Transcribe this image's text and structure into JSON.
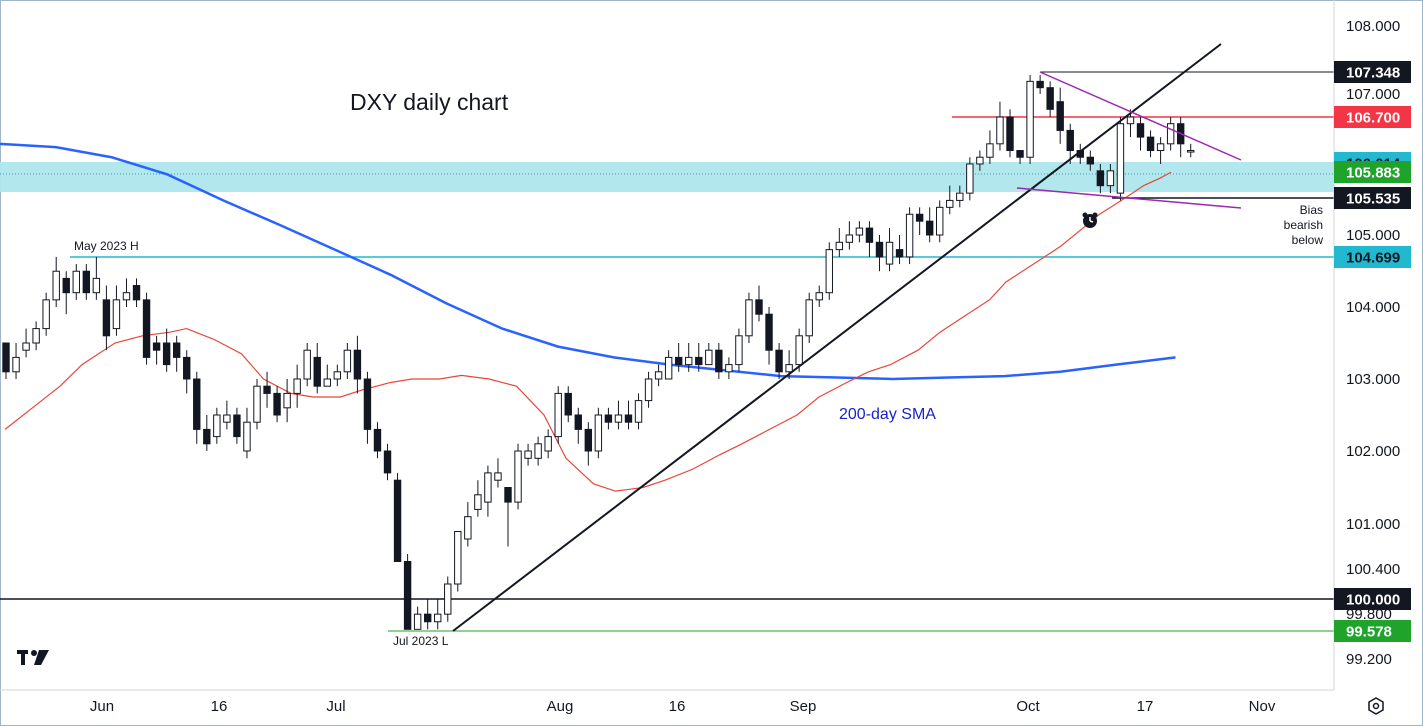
{
  "chart_data": {
    "type": "candlestick",
    "title": "DXY daily chart",
    "y_ticks": [
      "108.000",
      "107.000",
      "105.000",
      "104.000",
      "103.000",
      "102.000",
      "101.000",
      "100.400",
      "99.800",
      "99.200"
    ],
    "x_ticks": [
      "Jun",
      "16",
      "Jul",
      "Aug",
      "16",
      "Sep",
      "Oct",
      "17",
      "Nov"
    ],
    "price_tags": [
      {
        "value": "107.348",
        "bg": "#131722",
        "fg": "#ffffff"
      },
      {
        "value": "106.700",
        "bg": "#f23645",
        "fg": "#ffffff"
      },
      {
        "value": "106.014",
        "bg": "#22b8cf",
        "fg": "#131722"
      },
      {
        "value": "105.883",
        "bg": "#1fa32b",
        "fg": "#ffffff"
      },
      {
        "value": "105.535",
        "bg": "#131722",
        "fg": "#ffffff"
      },
      {
        "value": "104.699",
        "bg": "#22b8cf",
        "fg": "#131722"
      },
      {
        "value": "100.000",
        "bg": "#131722",
        "fg": "#ffffff"
      },
      {
        "value": "99.578",
        "bg": "#1fa32b",
        "fg": "#ffffff"
      }
    ],
    "levels": {
      "high_oct": 107.348,
      "resistance": 106.7,
      "zone_top": 106.014,
      "zone_bottom": 105.535,
      "ma_now": 105.883,
      "may_high": 104.699,
      "round": 100.0,
      "jul_low": 99.578
    },
    "annotations": {
      "may_high": "May 2023 H",
      "jul_low": "Jul 2023 L",
      "bias_line1": "Bias",
      "bias_line2": "bearish",
      "bias_line3": "below",
      "sma_label": "200-day SMA"
    },
    "candles": [
      [
        103.5,
        103.1,
        103.5,
        103.0
      ],
      [
        103.1,
        103.3,
        103.5,
        103.0
      ],
      [
        103.4,
        103.5,
        103.7,
        103.3
      ],
      [
        103.5,
        103.7,
        103.8,
        103.4
      ],
      [
        103.7,
        104.1,
        104.2,
        103.6
      ],
      [
        104.1,
        104.5,
        104.7,
        104.0
      ],
      [
        104.4,
        104.2,
        104.5,
        103.9
      ],
      [
        104.2,
        104.5,
        104.6,
        104.1
      ],
      [
        104.5,
        104.2,
        104.6,
        104.1
      ],
      [
        104.2,
        104.4,
        104.7,
        104.1
      ],
      [
        104.1,
        103.6,
        104.3,
        103.4
      ],
      [
        103.7,
        104.1,
        104.3,
        103.6
      ],
      [
        104.1,
        104.2,
        104.4,
        104.0
      ],
      [
        104.3,
        104.1,
        104.4,
        104.0
      ],
      [
        104.1,
        103.3,
        104.2,
        103.2
      ],
      [
        103.5,
        103.4,
        103.6,
        103.2
      ],
      [
        103.5,
        103.2,
        103.7,
        103.1
      ],
      [
        103.5,
        103.3,
        103.6,
        103.1
      ],
      [
        103.3,
        103.0,
        103.4,
        102.8
      ],
      [
        103.0,
        102.3,
        103.1,
        102.1
      ],
      [
        102.3,
        102.1,
        102.5,
        102.0
      ],
      [
        102.2,
        102.5,
        102.6,
        102.1
      ],
      [
        102.4,
        102.5,
        102.7,
        102.3
      ],
      [
        102.5,
        102.2,
        102.6,
        102.1
      ],
      [
        102.0,
        102.4,
        102.6,
        101.9
      ],
      [
        102.4,
        102.9,
        103.0,
        102.3
      ],
      [
        102.9,
        102.8,
        103.1,
        102.6
      ],
      [
        102.8,
        102.5,
        102.9,
        102.4
      ],
      [
        102.6,
        102.8,
        103.0,
        102.4
      ],
      [
        102.8,
        103.0,
        103.2,
        102.6
      ],
      [
        103.0,
        103.4,
        103.5,
        102.9
      ],
      [
        103.3,
        102.9,
        103.5,
        102.8
      ],
      [
        102.9,
        103.0,
        103.2,
        102.9
      ],
      [
        103.0,
        103.1,
        103.2,
        102.9
      ],
      [
        103.1,
        103.4,
        103.5,
        103.0
      ],
      [
        103.4,
        103.0,
        103.6,
        102.8
      ],
      [
        103.0,
        102.3,
        103.1,
        102.1
      ],
      [
        102.3,
        102.0,
        102.4,
        101.9
      ],
      [
        102.0,
        101.7,
        102.1,
        101.6
      ],
      [
        101.6,
        100.5,
        101.7,
        100.5
      ],
      [
        100.5,
        99.6,
        100.6,
        99.6
      ],
      [
        99.6,
        99.8,
        99.9,
        99.6
      ],
      [
        99.8,
        99.7,
        100.0,
        99.6
      ],
      [
        99.7,
        99.8,
        100.0,
        99.6
      ],
      [
        99.8,
        100.2,
        100.3,
        99.7
      ],
      [
        100.2,
        100.9,
        100.9,
        100.1
      ],
      [
        100.8,
        101.1,
        101.3,
        100.7
      ],
      [
        101.2,
        101.4,
        101.6,
        101.1
      ],
      [
        101.3,
        101.7,
        101.8,
        101.1
      ],
      [
        101.6,
        101.7,
        101.9,
        101.5
      ],
      [
        101.5,
        101.3,
        101.5,
        100.7
      ],
      [
        101.3,
        102.0,
        102.1,
        101.2
      ],
      [
        101.9,
        102.0,
        102.1,
        101.8
      ],
      [
        101.9,
        102.1,
        102.2,
        101.8
      ],
      [
        102.0,
        102.2,
        102.3,
        101.9
      ],
      [
        102.2,
        102.8,
        102.9,
        102.1
      ],
      [
        102.8,
        102.5,
        102.9,
        102.4
      ],
      [
        102.5,
        102.3,
        102.6,
        102.1
      ],
      [
        102.3,
        102.0,
        102.4,
        101.8
      ],
      [
        102.0,
        102.5,
        102.6,
        101.9
      ],
      [
        102.5,
        102.4,
        102.6,
        102.3
      ],
      [
        102.4,
        102.5,
        102.7,
        102.3
      ],
      [
        102.5,
        102.4,
        102.7,
        102.3
      ],
      [
        102.4,
        102.7,
        102.8,
        102.3
      ],
      [
        102.7,
        103.0,
        103.1,
        102.6
      ],
      [
        103.0,
        103.1,
        103.2,
        102.9
      ],
      [
        103.0,
        103.3,
        103.4,
        103.0
      ],
      [
        103.3,
        103.2,
        103.5,
        103.1
      ],
      [
        103.2,
        103.3,
        103.5,
        103.1
      ],
      [
        103.3,
        103.2,
        103.5,
        103.1
      ],
      [
        103.2,
        103.4,
        103.5,
        103.2
      ],
      [
        103.4,
        103.1,
        103.5,
        103.0
      ],
      [
        103.1,
        103.2,
        103.3,
        103.0
      ],
      [
        103.2,
        103.6,
        103.7,
        103.1
      ],
      [
        103.6,
        104.1,
        104.2,
        103.5
      ],
      [
        104.1,
        103.9,
        104.3,
        103.8
      ],
      [
        103.9,
        103.4,
        104.0,
        103.2
      ],
      [
        103.4,
        103.1,
        103.5,
        103.0
      ],
      [
        103.1,
        103.2,
        103.4,
        103.0
      ],
      [
        103.2,
        103.6,
        103.7,
        103.1
      ],
      [
        103.6,
        104.1,
        104.2,
        103.5
      ],
      [
        104.1,
        104.2,
        104.3,
        104.0
      ],
      [
        104.2,
        104.8,
        104.9,
        104.1
      ],
      [
        104.8,
        104.9,
        105.1,
        104.7
      ],
      [
        104.9,
        105.0,
        105.2,
        104.8
      ],
      [
        105.0,
        105.1,
        105.2,
        104.9
      ],
      [
        105.1,
        104.9,
        105.2,
        104.7
      ],
      [
        104.9,
        104.7,
        105.0,
        104.5
      ],
      [
        104.6,
        104.9,
        105.1,
        104.5
      ],
      [
        104.8,
        104.7,
        105.0,
        104.6
      ],
      [
        104.7,
        105.3,
        105.4,
        104.6
      ],
      [
        105.3,
        105.2,
        105.4,
        105.0
      ],
      [
        105.2,
        105.0,
        105.4,
        104.9
      ],
      [
        105.0,
        105.4,
        105.5,
        104.9
      ],
      [
        105.4,
        105.5,
        105.7,
        105.3
      ],
      [
        105.5,
        105.6,
        105.7,
        105.4
      ],
      [
        105.6,
        106.0,
        106.1,
        105.5
      ],
      [
        106.0,
        106.1,
        106.2,
        105.9
      ],
      [
        106.1,
        106.3,
        106.5,
        106.0
      ],
      [
        106.3,
        106.7,
        106.9,
        106.2
      ],
      [
        106.7,
        106.2,
        106.8,
        106.1
      ],
      [
        106.2,
        106.1,
        106.2,
        106.0
      ],
      [
        106.1,
        107.2,
        107.3,
        106.0
      ],
      [
        107.2,
        107.1,
        107.3,
        107.0
      ],
      [
        107.1,
        106.8,
        107.2,
        106.7
      ],
      [
        106.9,
        106.5,
        107.1,
        106.3
      ],
      [
        106.5,
        106.2,
        106.6,
        106.0
      ],
      [
        106.2,
        106.1,
        106.3,
        106.0
      ],
      [
        106.1,
        106.0,
        106.2,
        105.9
      ],
      [
        105.9,
        105.7,
        106.0,
        105.6
      ],
      [
        105.7,
        105.9,
        106.0,
        105.6
      ],
      [
        105.6,
        106.6,
        106.7,
        105.5
      ],
      [
        106.6,
        106.7,
        106.8,
        106.4
      ],
      [
        106.6,
        106.4,
        106.7,
        106.2
      ],
      [
        106.4,
        106.2,
        106.5,
        106.1
      ],
      [
        106.2,
        106.3,
        106.4,
        106.0
      ],
      [
        106.3,
        106.6,
        106.7,
        106.2
      ],
      [
        106.6,
        106.3,
        106.7,
        106.1
      ],
      [
        106.2,
        106.2,
        106.3,
        106.1
      ]
    ],
    "ma_fast": [
      102.3,
      102.6,
      102.9,
      103.2,
      103.5,
      103.6,
      103.65,
      103.7,
      103.55,
      103.35,
      103.0,
      102.8,
      102.75,
      102.75,
      102.85,
      102.95,
      103.0,
      103.0,
      103.05,
      103.0,
      102.9,
      102.5,
      101.9,
      101.55,
      101.45,
      101.5,
      101.6,
      101.75,
      101.95,
      102.1,
      102.3,
      102.5,
      102.75,
      102.95,
      103.1,
      103.2,
      103.4,
      103.65,
      103.85,
      104.1,
      104.35,
      104.55,
      104.7,
      104.85,
      105.1,
      105.3,
      105.45,
      105.6,
      105.7,
      105.8,
      105.88
    ],
    "ma_fast_days": [
      0,
      5,
      10,
      14,
      20,
      25,
      30,
      33,
      38,
      43,
      47,
      52,
      56,
      61,
      65,
      70,
      74,
      79,
      83,
      88,
      93,
      98,
      102,
      107,
      111,
      116,
      120,
      125,
      130,
      134,
      139,
      144,
      148,
      153,
      157,
      161,
      166,
      170,
      174,
      179,
      182,
      186,
      189,
      192,
      196,
      199,
      202,
      205,
      207,
      210,
      212
    ],
    "sma200": [
      106.3,
      106.25,
      106.1,
      105.85,
      105.5,
      105.15,
      104.8,
      104.45,
      104.05,
      103.7,
      103.45,
      103.3,
      103.2,
      103.12,
      103.04,
      103.02,
      103.0,
      103.02,
      103.04,
      103.1,
      103.2,
      103.3
    ],
    "sma200_days": [
      0,
      15,
      30,
      45,
      60,
      75,
      90,
      105,
      120,
      135,
      150,
      165,
      180,
      195,
      210,
      225,
      240,
      255,
      270,
      285,
      300,
      316
    ]
  }
}
